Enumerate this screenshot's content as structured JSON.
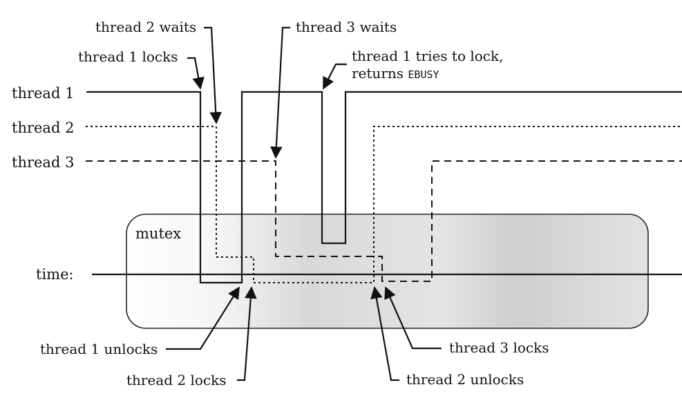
{
  "thread_labels": {
    "thread1": "thread 1",
    "thread2": "thread 2",
    "thread3": "thread 3"
  },
  "axis": {
    "time_label": "time:"
  },
  "mutex": {
    "label": "mutex"
  },
  "annotations": {
    "thread2_waits": "thread 2 waits",
    "thread1_locks": "thread 1 locks",
    "thread3_waits": "thread 3 waits",
    "thread1_tries_line1": "thread 1 tries to lock,",
    "thread1_tries_prefix": "returns ",
    "thread1_tries_code": "EBUSY",
    "thread1_unlocks": "thread 1 unlocks",
    "thread2_locks": "thread 2 locks",
    "thread3_locks": "thread 3 locks",
    "thread2_unlocks": "thread 2 unlocks"
  },
  "line_styles": {
    "thread1": "solid",
    "thread2": "dotted",
    "thread3": "dashed"
  },
  "colors": {
    "ink": "#111111",
    "mutex_fill": "#dcdcdc",
    "mutex_fill_dark": "#c8c8c8"
  }
}
